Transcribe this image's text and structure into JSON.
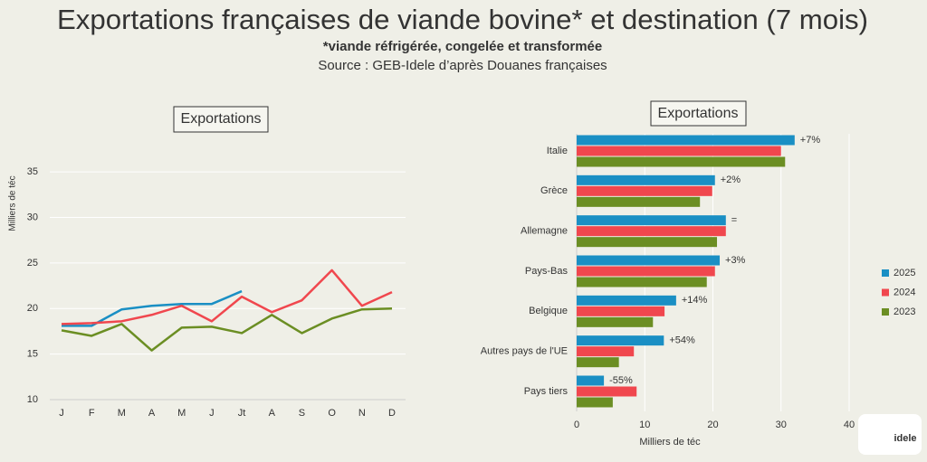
{
  "header": {
    "title": "Exportations françaises de viande bovine* et destination (7 mois)",
    "subtitle": "*viande réfrigérée, congelée et transformée",
    "source": "Source : GEB-Idele d’après Douanes françaises"
  },
  "logo": "idele",
  "chart_data": [
    {
      "type": "line",
      "title": "Exportations",
      "ylabel": "Milliers de téc",
      "categories": [
        "J",
        "F",
        "M",
        "A",
        "M",
        "J",
        "Jt",
        "A",
        "S",
        "O",
        "N",
        "D"
      ],
      "ylim": [
        10,
        36
      ],
      "yticks": [
        10,
        15,
        20,
        25,
        30,
        35
      ],
      "grid": true,
      "series": [
        {
          "color": "#1a8fc4",
          "values": [
            18.1,
            18.1,
            19.9,
            20.3,
            20.5,
            20.5,
            21.9,
            null,
            null,
            null,
            null,
            null
          ]
        },
        {
          "color": "#f0474e",
          "values": [
            18.3,
            18.4,
            18.6,
            19.3,
            20.3,
            18.6,
            21.3,
            19.6,
            20.9,
            24.2,
            20.3,
            21.8
          ]
        },
        {
          "color": "#6b8e23",
          "values": [
            17.6,
            17.0,
            18.3,
            15.4,
            17.9,
            18.0,
            17.3,
            19.3,
            17.3,
            18.9,
            19.9,
            20.0
          ]
        }
      ]
    },
    {
      "type": "hbar",
      "title": "Exportations",
      "xlabel": "Milliers de téc",
      "categories": [
        "Italie",
        "Grèce",
        "Allemagne",
        "Pays-Bas",
        "Belgique",
        "Autres pays de l'UE",
        "Pays tiers"
      ],
      "xlim": [
        0,
        40
      ],
      "xticks": [
        0,
        10,
        20,
        30,
        40
      ],
      "grid": true,
      "legend": "right",
      "series": [
        {
          "name": "2025",
          "color": "#1a8fc4",
          "values": [
            32.0,
            20.3,
            21.9,
            21.0,
            14.6,
            12.8,
            4.0
          ]
        },
        {
          "name": "2024",
          "color": "#f0474e",
          "values": [
            30.0,
            19.9,
            21.9,
            20.3,
            12.9,
            8.4,
            8.8
          ]
        },
        {
          "name": "2023",
          "color": "#6b8e23",
          "values": [
            30.6,
            18.1,
            20.6,
            19.1,
            11.2,
            6.2,
            5.3
          ]
        }
      ],
      "annotations": [
        "+7%",
        "+2%",
        "=",
        "+3%",
        "+14%",
        "+54%",
        "-55%"
      ]
    }
  ]
}
